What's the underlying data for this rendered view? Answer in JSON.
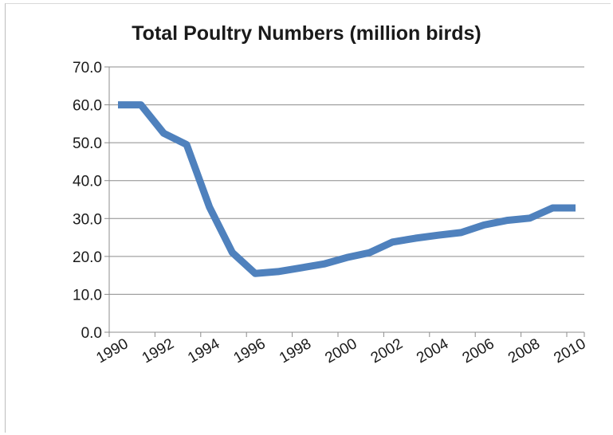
{
  "chart_data": {
    "type": "line",
    "title": "Total Poultry Numbers (million birds)",
    "xlabel": "",
    "ylabel": "",
    "x": [
      1990,
      1991,
      1992,
      1993,
      1994,
      1995,
      1996,
      1997,
      1998,
      1999,
      2000,
      2001,
      2002,
      2003,
      2004,
      2005,
      2006,
      2007,
      2008,
      2009,
      2010
    ],
    "x_tick_labels": [
      "1990",
      "1992",
      "1994",
      "1996",
      "1998",
      "2000",
      "2002",
      "2004",
      "2006",
      "2008",
      "2010"
    ],
    "y_tick_labels": [
      "70.0",
      "60.0",
      "50.0",
      "40.0",
      "30.0",
      "20.0",
      "10.0",
      "0.0"
    ],
    "series": [
      {
        "values": [
          60.0,
          60.0,
          52.5,
          49.5,
          33.0,
          21.0,
          15.5,
          16.0,
          17.0,
          18.0,
          19.7,
          21.0,
          23.8,
          24.8,
          25.6,
          26.3,
          28.3,
          29.5,
          30.1,
          32.8,
          32.8
        ],
        "color": "#4f81bd"
      }
    ],
    "ylim": [
      0,
      70
    ],
    "xlim": [
      1990,
      2010
    ],
    "grid": true,
    "legend": "none"
  }
}
